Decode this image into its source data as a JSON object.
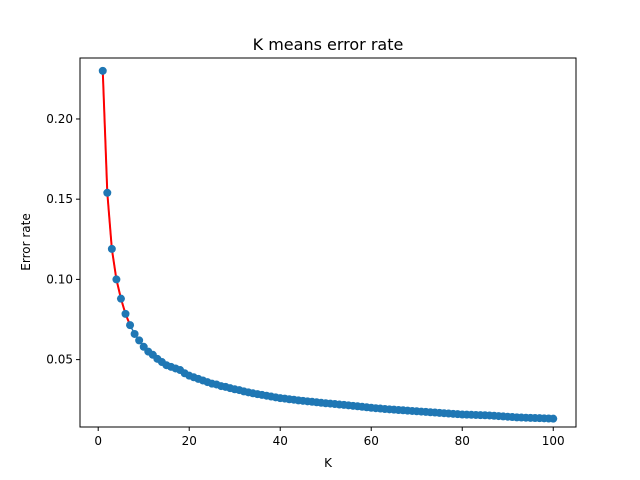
{
  "chart_data": {
    "type": "line",
    "title": "K means error rate",
    "xlabel": "K",
    "ylabel": "Error rate",
    "xlim": [
      -4,
      105
    ],
    "ylim": [
      0.008,
      0.238
    ],
    "xticks": [
      0,
      20,
      40,
      60,
      80,
      100
    ],
    "yticks": [
      0.05,
      0.1,
      0.15,
      0.2
    ],
    "ytick_labels": [
      "0.05",
      "0.10",
      "0.15",
      "0.20"
    ],
    "grid": false,
    "colors": {
      "line_early": "#ff0000",
      "line": "#1f77b4",
      "marker": "#1f77b4",
      "frame": "#000000"
    },
    "series": [
      {
        "x": [
          1,
          2,
          3,
          4,
          5,
          6,
          7,
          8,
          9,
          10,
          11,
          12,
          13,
          14,
          15,
          16,
          17,
          18,
          19,
          20,
          21,
          22,
          23,
          24,
          25,
          26,
          27,
          28,
          29,
          30,
          31,
          32,
          33,
          34,
          35,
          36,
          37,
          38,
          39,
          40,
          41,
          42,
          43,
          44,
          45,
          46,
          47,
          48,
          49,
          50,
          51,
          52,
          53,
          54,
          55,
          56,
          57,
          58,
          59,
          60,
          61,
          62,
          63,
          64,
          65,
          66,
          67,
          68,
          69,
          70,
          71,
          72,
          73,
          74,
          75,
          76,
          77,
          78,
          79,
          80,
          81,
          82,
          83,
          84,
          85,
          86,
          87,
          88,
          89,
          90,
          91,
          92,
          93,
          94,
          95,
          96,
          97,
          98,
          99,
          100
        ],
        "y": [
          0.23,
          0.154,
          0.119,
          0.1,
          0.088,
          0.0785,
          0.0715,
          0.066,
          0.062,
          0.058,
          0.055,
          0.053,
          0.0505,
          0.0485,
          0.0465,
          0.0455,
          0.0445,
          0.0435,
          0.0415,
          0.04,
          0.039,
          0.038,
          0.037,
          0.036,
          0.035,
          0.0345,
          0.0335,
          0.033,
          0.0322,
          0.0315,
          0.031,
          0.0302,
          0.0296,
          0.029,
          0.0285,
          0.028,
          0.0275,
          0.027,
          0.0265,
          0.026,
          0.0257,
          0.0253,
          0.025,
          0.0246,
          0.0243,
          0.024,
          0.0237,
          0.0234,
          0.0231,
          0.0228,
          0.0226,
          0.0223,
          0.022,
          0.0218,
          0.0215,
          0.0212,
          0.0209,
          0.0206,
          0.0203,
          0.02,
          0.0197,
          0.0195,
          0.0192,
          0.019,
          0.0188,
          0.0186,
          0.0184,
          0.0182,
          0.018,
          0.0178,
          0.0176,
          0.0174,
          0.0172,
          0.017,
          0.0168,
          0.0166,
          0.0164,
          0.0162,
          0.016,
          0.0158,
          0.0157,
          0.0156,
          0.0155,
          0.0154,
          0.0153,
          0.0152,
          0.015,
          0.0148,
          0.0146,
          0.0144,
          0.0142,
          0.014,
          0.0139,
          0.0138,
          0.0137,
          0.0136,
          0.0135,
          0.0134,
          0.0133,
          0.0132
        ]
      }
    ]
  }
}
